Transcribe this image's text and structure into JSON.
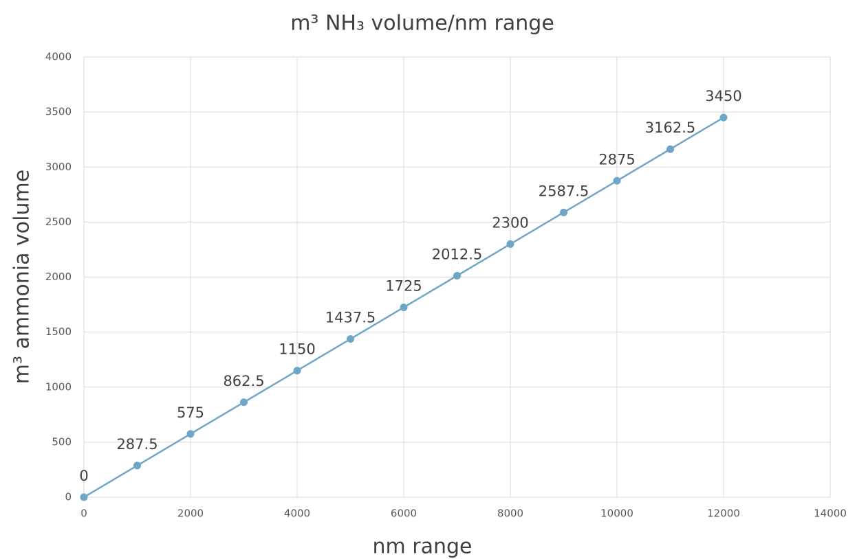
{
  "chart_data": {
    "type": "line",
    "title": "m³ NH₃ volume/nm range",
    "x_label": "nm range",
    "y_label": "m³ ammonia volume",
    "x": [
      0,
      1000,
      2000,
      3000,
      4000,
      5000,
      6000,
      7000,
      8000,
      9000,
      10000,
      11000,
      12000
    ],
    "series": [
      {
        "name": "m³ ammonia volume",
        "color": "#6ea6c8",
        "values": [
          0,
          287.5,
          575,
          862.5,
          1150,
          1437.5,
          1725,
          2012.5,
          2300,
          2587.5,
          2875,
          3162.5,
          3450
        ]
      }
    ],
    "xlim": [
      0,
      14000
    ],
    "xticks": [
      0,
      2000,
      4000,
      6000,
      8000,
      10000,
      12000,
      14000
    ],
    "ylim": [
      0,
      4000
    ],
    "yticks": [
      0,
      500,
      1000,
      1500,
      2000,
      2500,
      3000,
      3500,
      4000
    ],
    "grid": true,
    "markers": true,
    "data_labels": true
  }
}
